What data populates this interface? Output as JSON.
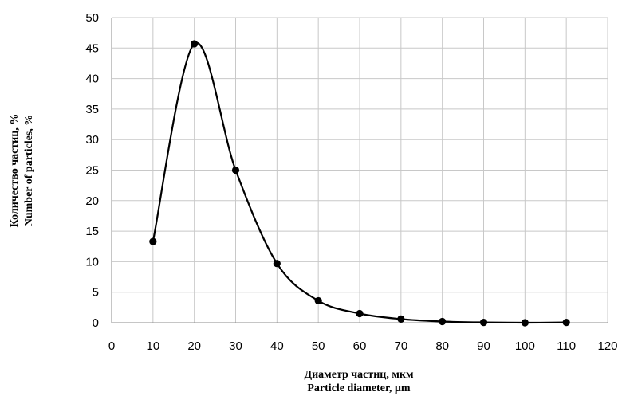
{
  "chart_data": {
    "type": "scatter",
    "smooth_line": true,
    "x": [
      10,
      20,
      30,
      40,
      50,
      60,
      70,
      80,
      90,
      100,
      110
    ],
    "y": [
      13.3,
      45.7,
      25.0,
      9.7,
      3.6,
      1.5,
      0.6,
      0.2,
      0.05,
      0.0,
      0.05
    ],
    "xlim": [
      0,
      120
    ],
    "ylim": [
      0,
      50
    ],
    "x_ticks": [
      0,
      10,
      20,
      30,
      40,
      50,
      60,
      70,
      80,
      90,
      100,
      110,
      120
    ],
    "y_ticks": [
      0,
      5,
      10,
      15,
      20,
      25,
      30,
      35,
      40,
      45,
      50
    ],
    "xlabel": "Диаметр частиц, мкм",
    "xlabel_en": "Particle diameter, µm",
    "ylabel": "Количество частиц, %",
    "ylabel_en": "Number of particles, %",
    "grid": true,
    "colors": {
      "line": "#000000",
      "marker": "#000000",
      "grid": "#c8c8c8"
    }
  }
}
